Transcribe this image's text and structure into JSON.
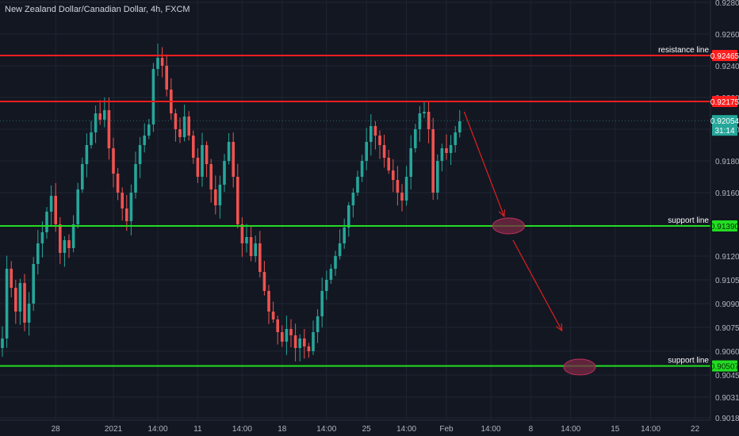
{
  "header": {
    "title": "New Zealand Dollar/Canadian Dollar, 4h, FXCM"
  },
  "colors": {
    "background": "#131722",
    "grid": "#1f2433",
    "axis_text": "#b2b5be",
    "bull": "#26a69a",
    "bear": "#ef5350",
    "resistance": "#ff1e1e",
    "support": "#22dd22",
    "price_badge": "#26a69a",
    "arrow": "#e02020",
    "ellipse_fill": "#7a2a45",
    "ellipse_stroke": "#c0305a"
  },
  "chart_data": {
    "type": "candlestick",
    "title": "New Zealand Dollar/Canadian Dollar, 4h, FXCM",
    "y_axis": {
      "position": "right",
      "ylim": [
        0.90165,
        0.92815
      ],
      "ticks": [
        "0.92800",
        "0.92600",
        "0.92400",
        "0.92200",
        "0.92000",
        "0.91800",
        "0.91600",
        "0.91200",
        "0.91050",
        "0.90900",
        "0.90750",
        "0.90600",
        "0.90450",
        "0.90310",
        "0.90180"
      ],
      "tick_values": [
        0.928,
        0.926,
        0.924,
        0.922,
        0.92,
        0.918,
        0.916,
        0.912,
        0.9105,
        0.909,
        0.9075,
        0.906,
        0.9045,
        0.9031,
        0.9018
      ]
    },
    "x_axis": {
      "tick_labels": [
        "28",
        "2021",
        "14:00",
        "11",
        "14:00",
        "18",
        "14:00",
        "25",
        "14:00",
        "Feb",
        "14:00",
        "8",
        "14:00",
        "15",
        "14:00",
        "22"
      ],
      "tick_index": [
        12,
        25,
        35,
        44,
        54,
        63,
        73,
        82,
        91,
        100,
        110,
        119,
        128,
        138,
        146,
        156
      ]
    },
    "levels": [
      {
        "label": "resistance line",
        "value": "0.92465",
        "price": 0.92465,
        "kind": "resistance",
        "show_label": true
      },
      {
        "label": "",
        "value": "0.92175",
        "price": 0.92175,
        "kind": "resistance",
        "show_label": false
      },
      {
        "label": "support line",
        "value": "0.91390",
        "price": 0.9139,
        "kind": "support",
        "show_label": true
      },
      {
        "label": "support line",
        "value": "0.90507",
        "price": 0.90507,
        "kind": "support",
        "show_label": true
      }
    ],
    "last_price": {
      "value": "0.92054",
      "price": 0.92054,
      "countdown": "31:14"
    },
    "closes": [
      0.9068,
      0.9112,
      0.91,
      0.9085,
      0.9103,
      0.9078,
      0.909,
      0.9115,
      0.9128,
      0.9135,
      0.9148,
      0.9158,
      0.914,
      0.9122,
      0.913,
      0.9125,
      0.914,
      0.9162,
      0.9178,
      0.919,
      0.9198,
      0.921,
      0.9206,
      0.9212,
      0.9188,
      0.9172,
      0.916,
      0.915,
      0.9142,
      0.916,
      0.9178,
      0.919,
      0.9196,
      0.9203,
      0.9238,
      0.9245,
      0.924,
      0.9225,
      0.921,
      0.92,
      0.9195,
      0.9208,
      0.9196,
      0.9182,
      0.917,
      0.919,
      0.9178,
      0.9162,
      0.9152,
      0.9165,
      0.918,
      0.9192,
      0.917,
      0.914,
      0.9128,
      0.9132,
      0.912,
      0.9128,
      0.911,
      0.9098,
      0.9085,
      0.908,
      0.9072,
      0.9066,
      0.9074,
      0.907,
      0.9062,
      0.9068,
      0.9063,
      0.906,
      0.9072,
      0.9082,
      0.9098,
      0.9105,
      0.9112,
      0.912,
      0.9128,
      0.9138,
      0.9152,
      0.916,
      0.917,
      0.918,
      0.9192,
      0.9202,
      0.9196,
      0.919,
      0.9182,
      0.9174,
      0.9168,
      0.916,
      0.9155,
      0.917,
      0.9188,
      0.92,
      0.921,
      0.9211,
      0.92,
      0.916,
      0.918,
      0.9188,
      0.9185,
      0.919,
      0.9198,
      0.9205
    ],
    "annotations": [
      {
        "type": "arrow",
        "from_index": 104,
        "from_price": 0.9211,
        "to_index": 113,
        "to_price": 0.9145
      },
      {
        "type": "ellipse",
        "center_index": 114,
        "center_price": 0.9139
      },
      {
        "type": "arrow",
        "from_index": 115,
        "from_price": 0.913,
        "to_index": 126,
        "to_price": 0.9073
      },
      {
        "type": "ellipse",
        "center_index": 130,
        "center_price": 0.905
      }
    ]
  }
}
